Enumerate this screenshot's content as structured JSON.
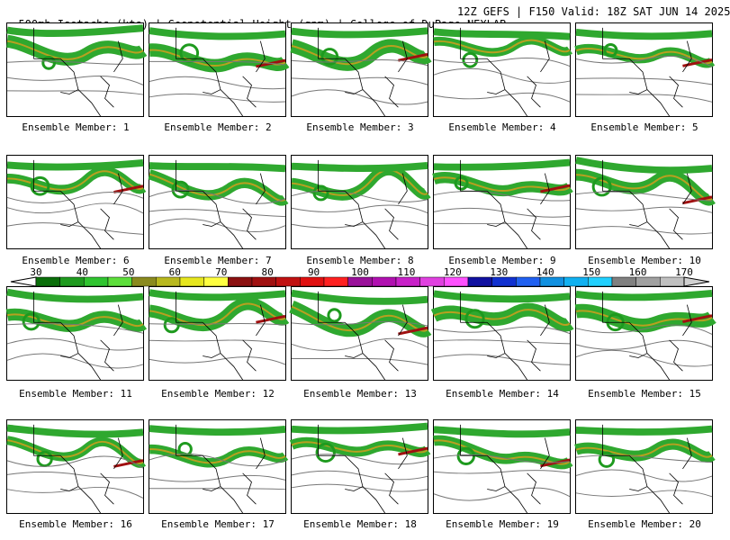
{
  "header": {
    "title_left": "500mb Isotachs (kts) | Geopotential Height (gpm) | College of DuPage NEXLAB",
    "title_right": "12Z GEFS | F150 Valid: 18Z SAT JUN 14 2025"
  },
  "label_prefix": "Ensemble Member:",
  "members": [
    {
      "id": 1,
      "label": "Ensemble Member: 1"
    },
    {
      "id": 2,
      "label": "Ensemble Member: 2"
    },
    {
      "id": 3,
      "label": "Ensemble Member: 3"
    },
    {
      "id": 4,
      "label": "Ensemble Member: 4"
    },
    {
      "id": 5,
      "label": "Ensemble Member: 5"
    },
    {
      "id": 6,
      "label": "Ensemble Member: 6"
    },
    {
      "id": 7,
      "label": "Ensemble Member: 7"
    },
    {
      "id": 8,
      "label": "Ensemble Member: 8"
    },
    {
      "id": 9,
      "label": "Ensemble Member: 9"
    },
    {
      "id": 10,
      "label": "Ensemble Member: 10"
    },
    {
      "id": 11,
      "label": "Ensemble Member: 11"
    },
    {
      "id": 12,
      "label": "Ensemble Member: 12"
    },
    {
      "id": 13,
      "label": "Ensemble Member: 13"
    },
    {
      "id": 14,
      "label": "Ensemble Member: 14"
    },
    {
      "id": 15,
      "label": "Ensemble Member: 15"
    },
    {
      "id": 16,
      "label": "Ensemble Member: 16"
    },
    {
      "id": 17,
      "label": "Ensemble Member: 17"
    },
    {
      "id": 18,
      "label": "Ensemble Member: 18"
    },
    {
      "id": 19,
      "label": "Ensemble Member: 19"
    },
    {
      "id": 20,
      "label": "Ensemble Member: 20"
    }
  ],
  "colorbar": {
    "labels": [
      "30",
      "40",
      "50",
      "60",
      "70",
      "80",
      "90",
      "100",
      "110",
      "120",
      "130",
      "140",
      "150",
      "160",
      "170"
    ],
    "colors": [
      "#0a6e0a",
      "#1e9a1e",
      "#2fc42f",
      "#5cde3a",
      "#8a8a1e",
      "#b8b81e",
      "#e6e61e",
      "#ffff40",
      "#8b1010",
      "#a01010",
      "#c01010",
      "#e01010",
      "#ff2020",
      "#9a109a",
      "#b010b0",
      "#c820c8",
      "#e040e0",
      "#ff50ff",
      "#1010a0",
      "#1030d0",
      "#2060f0",
      "#1090e0",
      "#10b0f0",
      "#20d0ff",
      "#808080",
      "#a0a0a0",
      "#c0c0c0"
    ]
  }
}
